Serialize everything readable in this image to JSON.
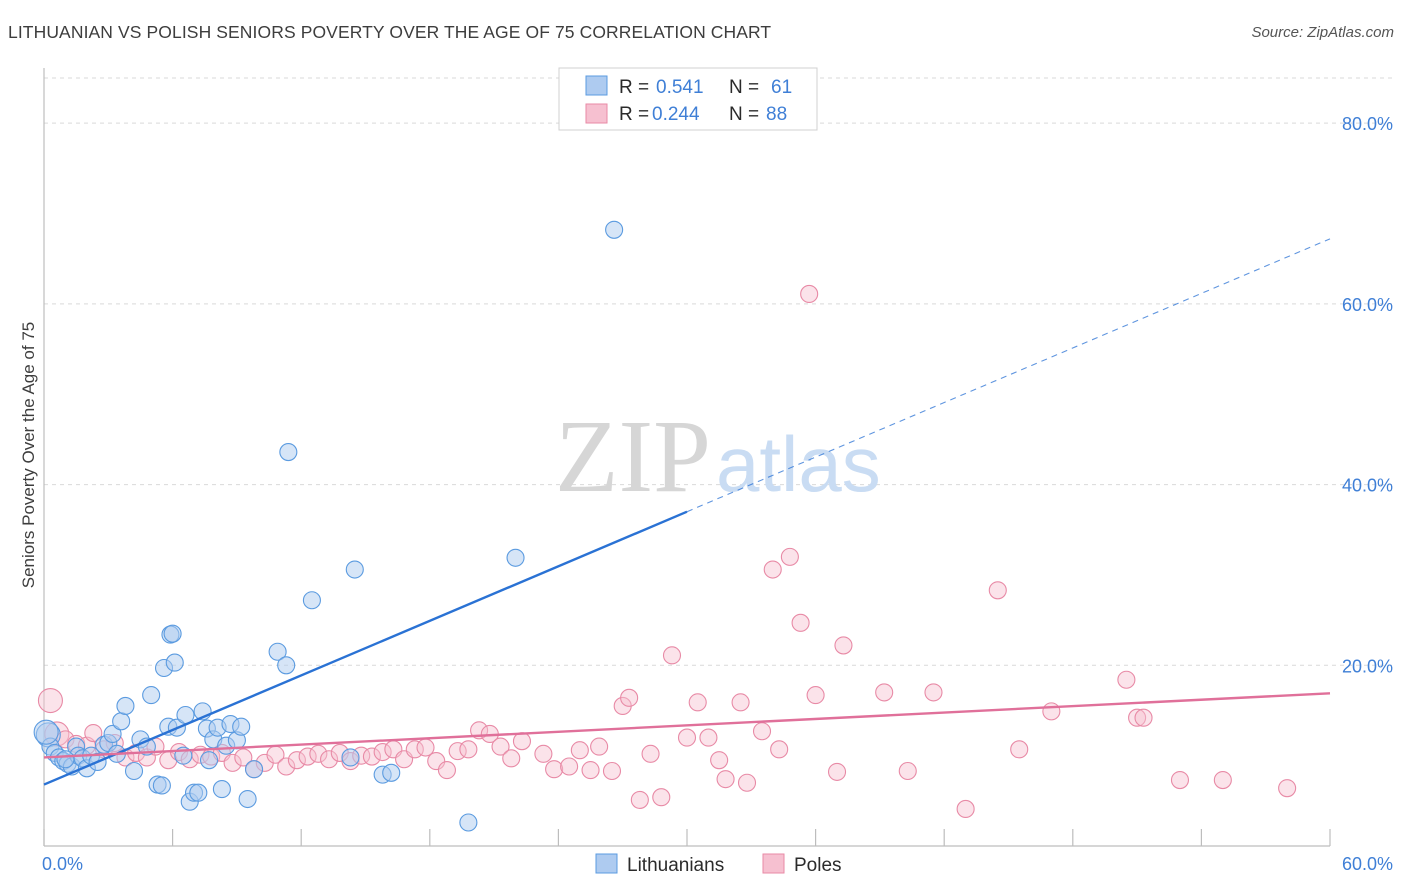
{
  "title": "LITHUANIAN VS POLISH SENIORS POVERTY OVER THE AGE OF 75 CORRELATION CHART",
  "source": "Source: ZipAtlas.com",
  "watermark": {
    "zip": "ZIP",
    "atlas": "atlas"
  },
  "colors": {
    "blue": "#5b9be0",
    "blue_fill": "#aecbf0",
    "blue_line": "#2a72d4",
    "pink": "#e88aa6",
    "pink_fill": "#f6c0d0",
    "pink_line": "#e0709a",
    "tick_label": "#3f7fd6",
    "grid": "#d9d9d9"
  },
  "legend": {
    "rows": [
      {
        "r_label": "R =",
        "r_value": "0.541",
        "n_label": "N =",
        "n_value": "61"
      },
      {
        "r_label": "R =",
        "r_value": "0.244",
        "n_label": "N =",
        "n_value": "88"
      }
    ]
  },
  "bottom_legend": [
    "Lithuanians",
    "Poles"
  ],
  "chart_data": {
    "type": "scatter",
    "title": "LITHUANIAN VS POLISH SENIORS POVERTY OVER THE AGE OF 75 CORRELATION CHART",
    "xlabel": "",
    "ylabel": "Seniors Poverty Over the Age of 75",
    "xlim": [
      0,
      60
    ],
    "ylim": [
      0,
      85
    ],
    "x_tick_labels": [
      {
        "value": 0,
        "label": "0.0%"
      },
      {
        "value": 60,
        "label": "60.0%"
      }
    ],
    "y_tick_labels": [
      {
        "value": 20,
        "label": "20.0%"
      },
      {
        "value": 40,
        "label": "40.0%"
      },
      {
        "value": 60,
        "label": "60.0%"
      },
      {
        "value": 80,
        "label": "80.0%"
      }
    ],
    "x_minor_ticks": [
      0,
      6,
      12,
      18,
      24,
      30,
      36,
      42,
      48,
      54,
      60
    ],
    "series": [
      {
        "name": "Lithuanians",
        "R": 0.541,
        "N": 61,
        "trend": {
          "x0": 0,
          "y0": 6.8,
          "x1": 30,
          "y1": 37.0,
          "dash_to_x": 60,
          "dash_to_y": 67.2
        },
        "points": [
          [
            0.2,
            12.3
          ],
          [
            0.3,
            11.0
          ],
          [
            0.5,
            10.3
          ],
          [
            0.7,
            9.8
          ],
          [
            0.9,
            9.4
          ],
          [
            1.1,
            9.1
          ],
          [
            1.3,
            8.8
          ],
          [
            1.5,
            11.0
          ],
          [
            1.6,
            10.0
          ],
          [
            1.8,
            9.7
          ],
          [
            2.0,
            8.6
          ],
          [
            2.2,
            10.0
          ],
          [
            2.5,
            9.3
          ],
          [
            2.8,
            11.2
          ],
          [
            3.0,
            11.4
          ],
          [
            3.2,
            12.4
          ],
          [
            3.4,
            10.2
          ],
          [
            3.6,
            13.8
          ],
          [
            3.8,
            15.5
          ],
          [
            4.2,
            8.3
          ],
          [
            4.5,
            11.8
          ],
          [
            4.8,
            11.0
          ],
          [
            5.0,
            16.7
          ],
          [
            5.3,
            6.8
          ],
          [
            5.5,
            6.7
          ],
          [
            5.6,
            19.7
          ],
          [
            5.8,
            13.2
          ],
          [
            5.9,
            23.4
          ],
          [
            6.0,
            23.5
          ],
          [
            6.1,
            20.3
          ],
          [
            6.2,
            13.1
          ],
          [
            6.5,
            10.0
          ],
          [
            6.6,
            14.5
          ],
          [
            6.8,
            4.9
          ],
          [
            7.0,
            5.9
          ],
          [
            7.2,
            5.9
          ],
          [
            7.4,
            14.9
          ],
          [
            7.6,
            13.0
          ],
          [
            7.7,
            9.5
          ],
          [
            7.9,
            11.8
          ],
          [
            8.1,
            13.1
          ],
          [
            8.3,
            6.3
          ],
          [
            8.5,
            11.1
          ],
          [
            8.7,
            13.5
          ],
          [
            9.0,
            11.7
          ],
          [
            9.2,
            13.2
          ],
          [
            9.5,
            5.2
          ],
          [
            9.8,
            8.5
          ],
          [
            10.9,
            21.5
          ],
          [
            11.3,
            20.0
          ],
          [
            11.4,
            43.6
          ],
          [
            12.5,
            27.2
          ],
          [
            14.3,
            9.8
          ],
          [
            14.5,
            30.6
          ],
          [
            15.8,
            7.9
          ],
          [
            16.2,
            8.1
          ],
          [
            19.8,
            2.6
          ],
          [
            22.0,
            31.9
          ],
          [
            26.6,
            68.2
          ],
          [
            0.1,
            12.6
          ],
          [
            1.0,
            9.6
          ]
        ]
      },
      {
        "name": "Poles",
        "R": 0.244,
        "N": 88,
        "trend": {
          "x0": 0,
          "y0": 9.8,
          "x1": 60,
          "y1": 16.9
        },
        "points": [
          [
            0.3,
            16.1
          ],
          [
            0.6,
            12.4
          ],
          [
            1.0,
            11.8
          ],
          [
            1.5,
            11.3
          ],
          [
            2.0,
            11.1
          ],
          [
            2.3,
            12.5
          ],
          [
            2.8,
            10.7
          ],
          [
            3.3,
            11.4
          ],
          [
            3.8,
            9.8
          ],
          [
            4.3,
            10.3
          ],
          [
            4.8,
            9.8
          ],
          [
            5.2,
            11.0
          ],
          [
            5.8,
            9.5
          ],
          [
            6.3,
            10.4
          ],
          [
            6.8,
            9.6
          ],
          [
            7.3,
            10.1
          ],
          [
            7.8,
            9.9
          ],
          [
            8.3,
            10.3
          ],
          [
            8.8,
            9.2
          ],
          [
            9.3,
            9.8
          ],
          [
            9.8,
            8.5
          ],
          [
            10.3,
            9.2
          ],
          [
            10.8,
            10.1
          ],
          [
            11.3,
            8.8
          ],
          [
            11.8,
            9.5
          ],
          [
            12.3,
            9.9
          ],
          [
            12.8,
            10.2
          ],
          [
            13.3,
            9.6
          ],
          [
            13.8,
            10.3
          ],
          [
            14.3,
            9.4
          ],
          [
            14.8,
            10.0
          ],
          [
            15.3,
            9.9
          ],
          [
            15.8,
            10.4
          ],
          [
            16.3,
            10.7
          ],
          [
            16.8,
            9.6
          ],
          [
            17.3,
            10.7
          ],
          [
            17.8,
            10.9
          ],
          [
            18.3,
            9.4
          ],
          [
            18.8,
            8.4
          ],
          [
            19.3,
            10.5
          ],
          [
            19.8,
            10.7
          ],
          [
            20.3,
            12.8
          ],
          [
            20.8,
            12.4
          ],
          [
            21.3,
            11.0
          ],
          [
            21.8,
            9.7
          ],
          [
            22.3,
            11.6
          ],
          [
            23.3,
            10.2
          ],
          [
            23.8,
            8.5
          ],
          [
            24.5,
            8.8
          ],
          [
            25.0,
            10.6
          ],
          [
            25.5,
            8.4
          ],
          [
            25.9,
            11.0
          ],
          [
            26.5,
            8.3
          ],
          [
            27.0,
            15.5
          ],
          [
            27.3,
            16.4
          ],
          [
            27.8,
            5.1
          ],
          [
            28.3,
            10.2
          ],
          [
            28.8,
            5.4
          ],
          [
            29.3,
            21.1
          ],
          [
            30.0,
            12.0
          ],
          [
            30.5,
            15.9
          ],
          [
            31.0,
            12.0
          ],
          [
            31.5,
            9.5
          ],
          [
            31.8,
            7.4
          ],
          [
            32.5,
            15.9
          ],
          [
            32.8,
            7.0
          ],
          [
            33.5,
            12.7
          ],
          [
            34.0,
            30.6
          ],
          [
            34.3,
            10.7
          ],
          [
            34.8,
            32.0
          ],
          [
            35.3,
            24.7
          ],
          [
            35.7,
            61.1
          ],
          [
            36.0,
            16.7
          ],
          [
            37.0,
            8.2
          ],
          [
            37.3,
            22.2
          ],
          [
            39.2,
            17.0
          ],
          [
            40.3,
            8.3
          ],
          [
            41.5,
            17.0
          ],
          [
            43.0,
            4.1
          ],
          [
            44.5,
            28.3
          ],
          [
            45.5,
            10.7
          ],
          [
            47.0,
            14.9
          ],
          [
            50.5,
            18.4
          ],
          [
            51.0,
            14.2
          ],
          [
            51.3,
            14.2
          ],
          [
            53.0,
            7.3
          ],
          [
            55.0,
            7.3
          ],
          [
            58.0,
            6.4
          ]
        ]
      }
    ]
  }
}
